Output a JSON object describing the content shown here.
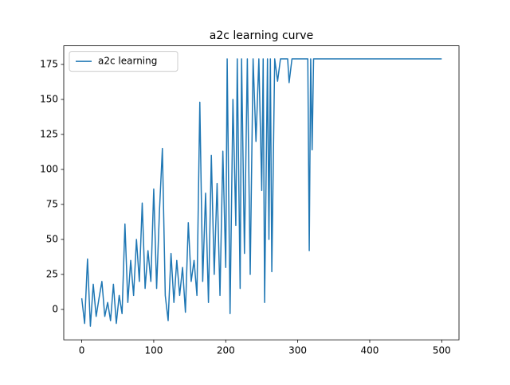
{
  "chart_data": {
    "type": "line",
    "title": "a2c learning curve",
    "x": [
      0,
      4,
      8,
      12,
      16,
      20,
      24,
      28,
      32,
      36,
      40,
      44,
      48,
      52,
      56,
      60,
      64,
      68,
      72,
      76,
      80,
      84,
      88,
      92,
      96,
      100,
      104,
      108,
      112,
      116,
      120,
      124,
      128,
      132,
      136,
      140,
      144,
      148,
      152,
      156,
      160,
      164,
      168,
      172,
      176,
      180,
      184,
      188,
      192,
      196,
      200,
      202,
      206,
      210,
      214,
      216,
      220,
      222,
      226,
      230,
      234,
      238,
      242,
      246,
      250,
      252,
      254,
      258,
      260,
      262,
      264,
      268,
      272,
      276,
      286,
      288,
      292,
      314,
      316,
      318,
      320,
      322,
      500
    ],
    "series": [
      {
        "name": "a2c learning",
        "color": "#1f77b4",
        "values": [
          8,
          -10,
          36,
          -12,
          18,
          -5,
          8,
          20,
          -5,
          5,
          -8,
          18,
          -10,
          10,
          -3,
          61,
          5,
          35,
          10,
          50,
          20,
          76,
          15,
          42,
          20,
          86,
          15,
          71,
          115,
          10,
          -8,
          40,
          5,
          35,
          10,
          30,
          -2,
          62,
          20,
          35,
          10,
          148,
          20,
          83,
          5,
          110,
          25,
          90,
          10,
          113,
          30,
          179,
          -3,
          150,
          60,
          179,
          15,
          179,
          40,
          179,
          25,
          179,
          120,
          179,
          85,
          179,
          5,
          179,
          50,
          179,
          27,
          179,
          163,
          179,
          179,
          162,
          179,
          179,
          42,
          179,
          114,
          179,
          179
        ]
      }
    ],
    "xlim": [
      -25,
      524
    ],
    "ylim": [
      -21.7,
      188.3
    ],
    "xticks": [
      0,
      100,
      200,
      300,
      400,
      500
    ],
    "yticks": [
      0,
      25,
      50,
      75,
      100,
      125,
      150,
      175
    ],
    "legend": "upper left"
  }
}
